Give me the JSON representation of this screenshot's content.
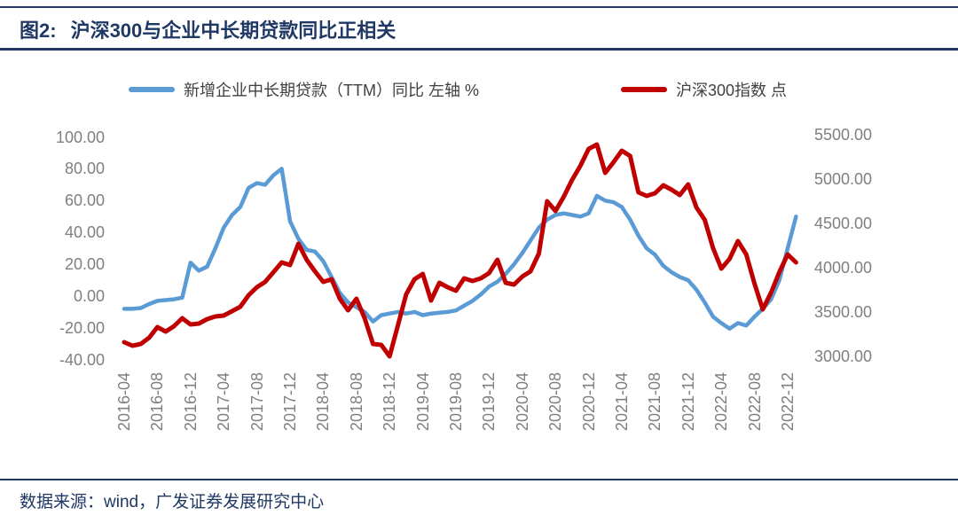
{
  "page": {
    "title_prefix": "图2:",
    "title": "沪深300与企业中长期贷款同比正相关",
    "source_label": "数据来源：wind，广发证券发展研究中心"
  },
  "colors": {
    "accent_navy": "#1f3864",
    "loan_line": "#5B9BD5",
    "index_line": "#C00000",
    "axis_text": "#7f7f7f"
  },
  "legend": [
    {
      "label": "新增企业中长期贷款（TTM）同比 左轴 %",
      "color": "#5B9BD5"
    },
    {
      "label": "沪深300指数 点",
      "color": "#C00000"
    }
  ],
  "chart_data": {
    "type": "line",
    "grid": false,
    "legend_position": "top",
    "x": [
      "2016-04",
      "2016-05",
      "2016-06",
      "2016-07",
      "2016-08",
      "2016-09",
      "2016-10",
      "2016-11",
      "2016-12",
      "2017-01",
      "2017-02",
      "2017-03",
      "2017-04",
      "2017-05",
      "2017-06",
      "2017-07",
      "2017-08",
      "2017-09",
      "2017-10",
      "2017-11",
      "2017-12",
      "2018-01",
      "2018-02",
      "2018-03",
      "2018-04",
      "2018-05",
      "2018-06",
      "2018-07",
      "2018-08",
      "2018-09",
      "2018-10",
      "2018-11",
      "2018-12",
      "2019-01",
      "2019-02",
      "2019-03",
      "2019-04",
      "2019-05",
      "2019-06",
      "2019-07",
      "2019-08",
      "2019-09",
      "2019-10",
      "2019-11",
      "2019-12",
      "2020-01",
      "2020-02",
      "2020-03",
      "2020-04",
      "2020-05",
      "2020-06",
      "2020-07",
      "2020-08",
      "2020-09",
      "2020-10",
      "2020-11",
      "2020-12",
      "2021-01",
      "2021-02",
      "2021-03",
      "2021-04",
      "2021-05",
      "2021-06",
      "2021-07",
      "2021-08",
      "2021-09",
      "2021-10",
      "2021-11",
      "2021-12",
      "2022-01",
      "2022-02",
      "2022-03",
      "2022-04",
      "2022-05",
      "2022-06",
      "2022-07",
      "2022-08",
      "2022-09",
      "2022-10",
      "2022-11",
      "2022-12",
      "2023-01"
    ],
    "x_tick_labels": [
      "2016-04",
      "2016-08",
      "2016-12",
      "2017-04",
      "2017-08",
      "2017-12",
      "2018-04",
      "2018-08",
      "2018-12",
      "2019-04",
      "2019-08",
      "2019-12",
      "2020-04",
      "2020-08",
      "2020-12",
      "2021-04",
      "2021-08",
      "2021-12",
      "2022-04",
      "2022-08",
      "2022-12"
    ],
    "series": [
      {
        "name": "新增企业中长期贷款（TTM）同比 左轴 %",
        "axis": "left",
        "unit": "%",
        "color": "#5B9BD5",
        "values": [
          -8,
          -8,
          -7.5,
          -5,
          -3,
          -2.5,
          -2,
          -1,
          21,
          16,
          18.5,
          30,
          43,
          51,
          56,
          68,
          71,
          70,
          76,
          80,
          47,
          36,
          29,
          28,
          22,
          12,
          2,
          -4,
          -7,
          -10,
          -16,
          -12,
          -11,
          -10,
          -11,
          -10,
          -12,
          -11,
          -10.5,
          -10,
          -9,
          -6,
          -3,
          1,
          6,
          9,
          14,
          20,
          27,
          35,
          43,
          48,
          51,
          52,
          51,
          50,
          52,
          63,
          60,
          59,
          56,
          48,
          38,
          30,
          26,
          19,
          15,
          12,
          10,
          4,
          -4,
          -13,
          -17,
          -20.5,
          -17,
          -18.5,
          -13,
          -8,
          -2,
          10,
          30,
          50
        ]
      },
      {
        "name": "沪深300指数 点",
        "axis": "right",
        "unit": "点",
        "color": "#C00000",
        "values": [
          3160,
          3120,
          3140,
          3210,
          3330,
          3280,
          3340,
          3430,
          3360,
          3370,
          3420,
          3450,
          3460,
          3510,
          3560,
          3690,
          3780,
          3840,
          3950,
          4060,
          4030,
          4270,
          4090,
          3960,
          3840,
          3870,
          3650,
          3520,
          3650,
          3430,
          3140,
          3130,
          3000,
          3350,
          3700,
          3870,
          3930,
          3630,
          3830,
          3780,
          3740,
          3880,
          3850,
          3880,
          3940,
          4090,
          3830,
          3810,
          3900,
          3960,
          4160,
          4750,
          4640,
          4800,
          4990,
          5150,
          5340,
          5390,
          5070,
          5190,
          5320,
          5260,
          4850,
          4810,
          4840,
          4930,
          4880,
          4820,
          4940,
          4680,
          4540,
          4220,
          3990,
          4100,
          4300,
          4150,
          3820,
          3530,
          3720,
          3950,
          4150,
          4060
        ]
      }
    ],
    "left_axis": {
      "ticks": [
        "100.00",
        "80.00",
        "60.00",
        "40.00",
        "20.00",
        "0.00",
        "-20.00",
        "-40.00"
      ],
      "min": -40,
      "max": 100
    },
    "right_axis": {
      "ticks": [
        "5500.00",
        "5000.00",
        "4500.00",
        "4000.00",
        "3500.00",
        "3000.00"
      ],
      "min": 3000,
      "max": 5500
    }
  }
}
